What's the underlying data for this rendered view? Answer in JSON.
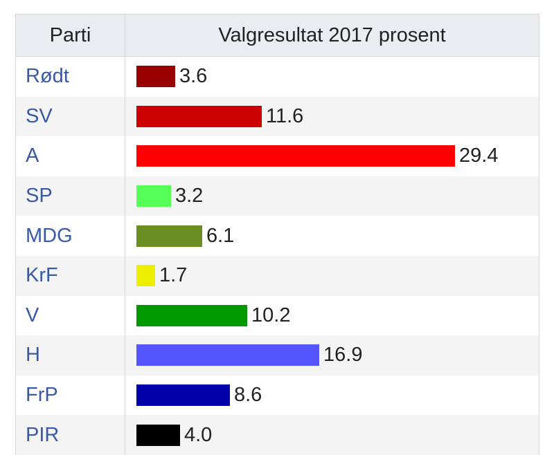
{
  "table": {
    "header_party": "Parti",
    "header_result": "Valgresultat 2017 prosent"
  },
  "chart_data": {
    "type": "bar",
    "orientation": "horizontal",
    "title": "",
    "xlabel": "Valgresultat 2017 prosent",
    "ylabel": "Parti",
    "xlim": [
      0,
      29.4
    ],
    "categories": [
      "Rødt",
      "SV",
      "A",
      "SP",
      "MDG",
      "KrF",
      "V",
      "H",
      "FrP",
      "PIR"
    ],
    "values": [
      3.6,
      11.6,
      29.4,
      3.2,
      6.1,
      1.7,
      10.2,
      16.9,
      8.6,
      4.0
    ],
    "value_labels": [
      "3.6",
      "11.6",
      "29.4",
      "3.2",
      "6.1",
      "1.7",
      "10.2",
      "16.9",
      "8.6",
      "4.0"
    ],
    "colors": [
      "#990000",
      "#cc0000",
      "#ff0000",
      "#55ff55",
      "#6b8e23",
      "#eeee00",
      "#009900",
      "#5555ff",
      "#0000aa",
      "#000000"
    ],
    "grid": false,
    "legend": "none"
  }
}
